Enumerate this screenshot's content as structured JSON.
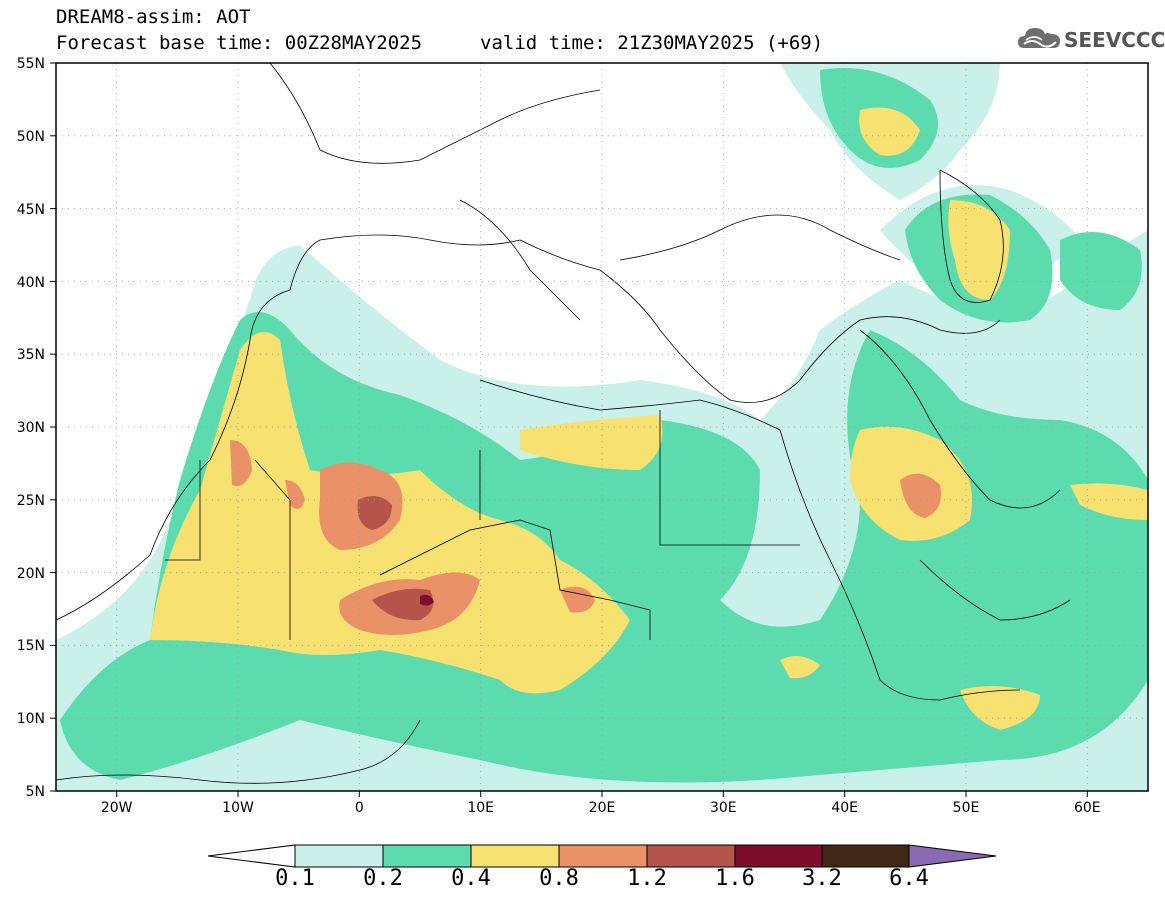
{
  "header": {
    "line1": "DREAM8-assim: AOT",
    "line2_left": "Forecast base time: 00Z28MAY2025",
    "line2_right": "valid time: 21Z30MAY2025 (+69)"
  },
  "logo": {
    "text": "SEEVCCC",
    "icon": "cloud-icon"
  },
  "map": {
    "lon_range": [
      -25,
      65
    ],
    "lat_range": [
      5,
      55
    ],
    "lat_ticks": [
      "5N",
      "10N",
      "15N",
      "20N",
      "25N",
      "30N",
      "35N",
      "40N",
      "45N",
      "50N",
      "55N"
    ],
    "lon_ticks": [
      "20W",
      "10W",
      "0",
      "10E",
      "20E",
      "30E",
      "40E",
      "50E",
      "60E"
    ]
  },
  "colorbar": {
    "levels": [
      "0.1",
      "0.2",
      "0.4",
      "0.8",
      "1.2",
      "1.6",
      "3.2",
      "6.4"
    ],
    "colors": {
      "c1": "#c9f1e9",
      "c2": "#5cdcae",
      "c3": "#f6e171",
      "c4": "#ea9168",
      "c5": "#b4544a",
      "c6": "#7e0d2b",
      "c7": "#412814",
      "c8": "#8a6ab5"
    }
  }
}
